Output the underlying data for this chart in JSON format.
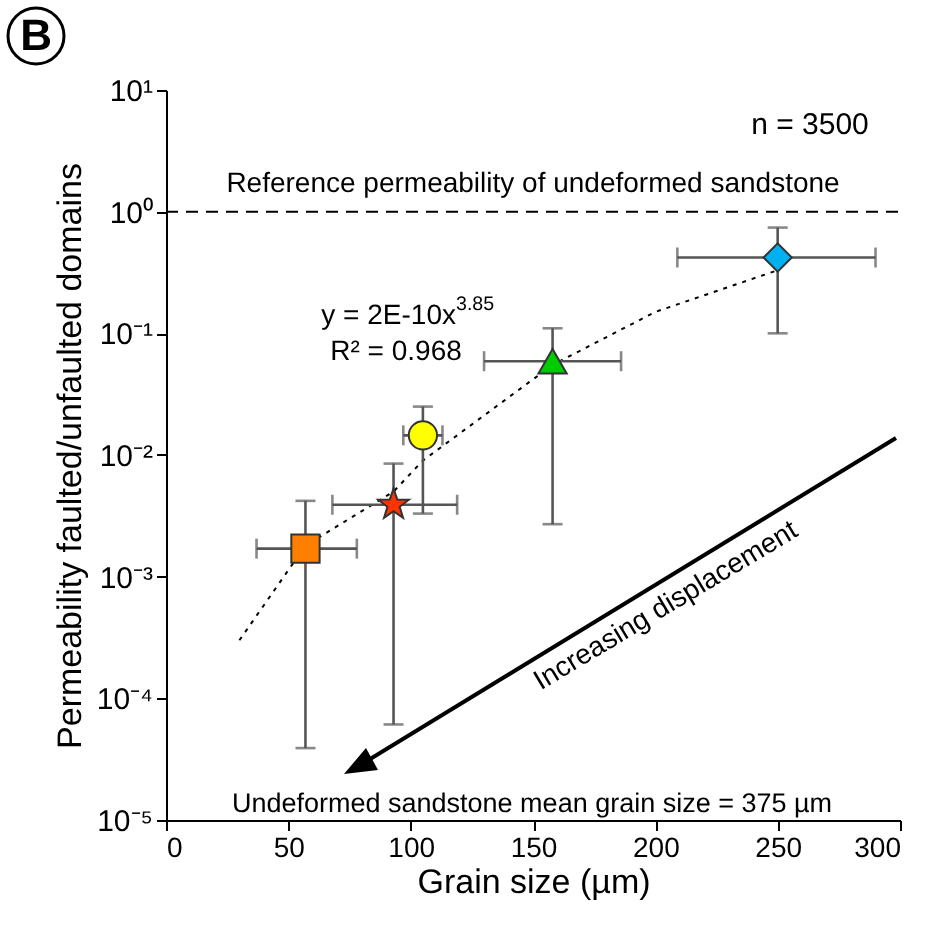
{
  "chart_data": {
    "type": "scatter",
    "xlabel": "Grain size (µm)",
    "ylabel": "Permeability faulted/unfaulted domains",
    "xlim": [
      0,
      300
    ],
    "xticks": [
      0,
      50,
      100,
      150,
      200,
      250,
      300
    ],
    "ylim": [
      1e-05,
      10
    ],
    "log": "y",
    "yticks": [
      {
        "value": 1e-05,
        "label": "10⁻⁵"
      },
      {
        "value": 0.0001,
        "label": "10⁻⁴"
      },
      {
        "value": 0.001,
        "label": "10⁻³"
      },
      {
        "value": 0.01,
        "label": "10⁻²"
      },
      {
        "value": 0.1,
        "label": "10⁻¹"
      },
      {
        "value": 1,
        "label": "10⁰"
      },
      {
        "value": 10,
        "label": "10¹"
      }
    ],
    "grid": false,
    "series": [
      {
        "type": "line",
        "line_style": "dotted",
        "marker": "none",
        "color": "#000000",
        "x": [
          30,
          57,
          93,
          105,
          158,
          200,
          250
        ],
        "values": [
          0.0003,
          0.0018,
          0.005,
          0.009,
          0.055,
          0.15,
          0.33
        ]
      },
      {
        "marker": "square",
        "color": "#ff7f00",
        "x": [
          57
        ],
        "values": [
          0.0017
        ],
        "errors": [
          [
            3.9e-05,
            0.0042
          ]
        ],
        "xerrors": [
          [
            37,
            78
          ]
        ]
      },
      {
        "marker": "star",
        "color": "#ff3300",
        "x": [
          93
        ],
        "values": [
          0.0039
        ],
        "errors": [
          [
            6.1e-05,
            0.0085
          ]
        ],
        "xerrors": [
          [
            68,
            119
          ]
        ]
      },
      {
        "marker": "circle",
        "color": "#ffff00",
        "x": [
          105
        ],
        "values": [
          0.0145
        ],
        "errors": [
          [
            0.0033,
            0.025
          ]
        ],
        "xerrors": [
          [
            97,
            113
          ]
        ]
      },
      {
        "marker": "triangle",
        "color": "#00cc00",
        "x": [
          158
        ],
        "values": [
          0.059
        ],
        "errors": [
          [
            0.0027,
            0.11
          ]
        ],
        "xerrors": [
          [
            130,
            186
          ]
        ]
      },
      {
        "marker": "diamond",
        "color": "#00b0f0",
        "x": [
          250
        ],
        "values": [
          0.42
        ],
        "errors": [
          [
            0.1,
            0.74
          ]
        ],
        "xerrors": [
          [
            209,
            290
          ]
        ]
      }
    ],
    "ref_lines": [
      {
        "axis": "y",
        "value": 1,
        "label": "Reference permeability of undeformed sandstone",
        "line_style": "dashed",
        "color": "#000000"
      }
    ],
    "annotations": [
      "n = 3500",
      "y = 2E-10x$^{3.85}$",
      "R² = 0.968",
      "Increasing displacement",
      "Undeformed sandstone mean grain size = 375 µm",
      "B"
    ]
  }
}
